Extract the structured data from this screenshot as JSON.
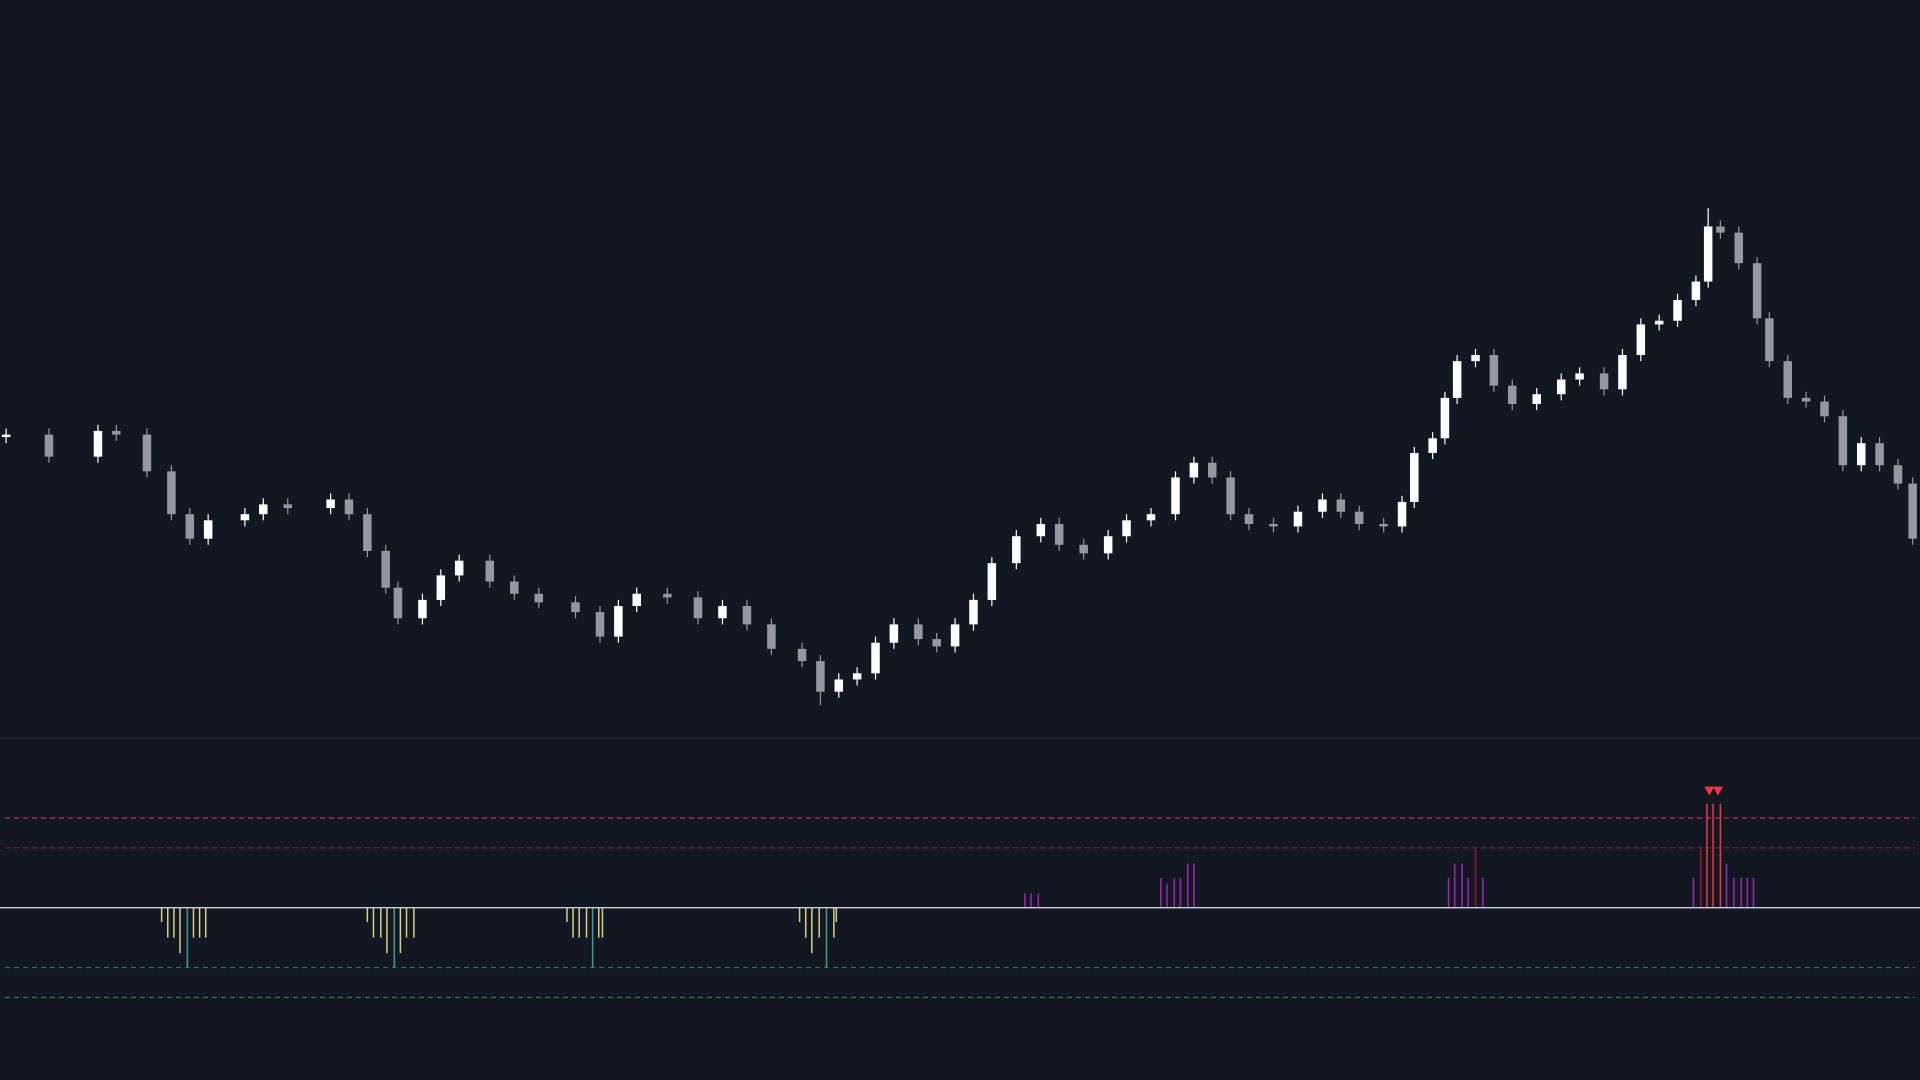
{
  "chart_data": [
    {
      "type": "candlestick",
      "background": "#131722",
      "up_color": "#ffffff",
      "down_color": "#9598a1",
      "xlim": [
        0,
        1568
      ],
      "ylim": [
        0,
        602
      ],
      "x": [
        5,
        40,
        80,
        95,
        120,
        140,
        155,
        170,
        200,
        215,
        235,
        270,
        285,
        300,
        315,
        325,
        345,
        360,
        375,
        400,
        420,
        440,
        470,
        490,
        505,
        520,
        545,
        570,
        590,
        610,
        630,
        655,
        670,
        685,
        700,
        715,
        730,
        750,
        765,
        780,
        795,
        810,
        830,
        850,
        865,
        885,
        905,
        920,
        940,
        960,
        975,
        990,
        1005,
        1020,
        1040,
        1060,
        1080,
        1095,
        1110,
        1130,
        1145,
        1155,
        1170,
        1180,
        1190,
        1205,
        1220,
        1235,
        1255,
        1275,
        1290,
        1310,
        1325,
        1340,
        1355,
        1370,
        1385,
        1395,
        1405,
        1420,
        1435,
        1445,
        1460,
        1475,
        1490,
        1505,
        1520,
        1535,
        1550,
        1562
      ],
      "open": [
        245,
        247,
        229,
        250,
        247,
        217,
        182,
        162,
        177,
        182,
        190,
        187,
        194,
        182,
        152,
        122,
        97,
        112,
        132,
        144,
        127,
        117,
        110,
        102,
        82,
        107,
        117,
        114,
        97,
        107,
        92,
        72,
        62,
        37,
        47,
        52,
        77,
        92,
        80,
        74,
        92,
        112,
        142,
        164,
        174,
        157,
        150,
        164,
        177,
        182,
        212,
        224,
        212,
        182,
        174,
        172,
        184,
        194,
        184,
        174,
        172,
        192,
        232,
        244,
        277,
        307,
        312,
        287,
        272,
        280,
        292,
        297,
        284,
        312,
        337,
        340,
        357,
        372,
        417,
        412,
        387,
        342,
        307,
        277,
        274,
        262,
        222,
        240,
        222,
        207
      ],
      "high": [
        252,
        252,
        255,
        255,
        252,
        222,
        187,
        182,
        187,
        195,
        195,
        199,
        199,
        187,
        157,
        127,
        117,
        137,
        149,
        149,
        132,
        122,
        115,
        107,
        112,
        122,
        122,
        119,
        112,
        112,
        97,
        77,
        67,
        52,
        57,
        82,
        97,
        97,
        85,
        97,
        117,
        147,
        169,
        179,
        179,
        162,
        169,
        182,
        187,
        217,
        229,
        229,
        217,
        187,
        179,
        189,
        199,
        199,
        189,
        179,
        197,
        237,
        249,
        282,
        312,
        317,
        317,
        292,
        285,
        297,
        302,
        302,
        317,
        342,
        345,
        362,
        377,
        432,
        422,
        417,
        392,
        347,
        312,
        282,
        279,
        267,
        245,
        245,
        227,
        212
      ],
      "low": [
        240,
        224,
        224,
        242,
        212,
        177,
        157,
        157,
        172,
        177,
        182,
        182,
        177,
        147,
        117,
        92,
        92,
        107,
        127,
        122,
        112,
        105,
        97,
        77,
        77,
        102,
        109,
        92,
        92,
        87,
        67,
        57,
        26,
        32,
        42,
        47,
        72,
        75,
        69,
        69,
        87,
        107,
        137,
        159,
        152,
        145,
        145,
        159,
        172,
        177,
        207,
        207,
        177,
        169,
        167,
        167,
        179,
        179,
        169,
        167,
        167,
        187,
        227,
        239,
        272,
        302,
        282,
        267,
        267,
        275,
        287,
        279,
        279,
        307,
        332,
        335,
        352,
        367,
        407,
        382,
        337,
        302,
        272,
        269,
        257,
        217,
        217,
        217,
        202,
        157
      ],
      "close": [
        247,
        229,
        250,
        247,
        217,
        182,
        162,
        177,
        182,
        190,
        187,
        194,
        182,
        152,
        122,
        97,
        112,
        132,
        144,
        127,
        117,
        110,
        102,
        82,
        107,
        117,
        114,
        97,
        107,
        92,
        72,
        62,
        37,
        47,
        52,
        77,
        92,
        80,
        74,
        92,
        112,
        142,
        164,
        174,
        157,
        150,
        164,
        177,
        182,
        212,
        224,
        212,
        182,
        174,
        172,
        184,
        194,
        184,
        174,
        172,
        192,
        232,
        244,
        277,
        307,
        312,
        287,
        272,
        280,
        292,
        297,
        284,
        312,
        337,
        340,
        357,
        372,
        417,
        412,
        387,
        342,
        307,
        277,
        274,
        262,
        222,
        240,
        222,
        207,
        162
      ]
    },
    {
      "type": "bar",
      "xlim": [
        0,
        1568
      ],
      "ylim": [
        -144,
        141
      ],
      "baseline": 0,
      "baseline_color": "#d1d4dc",
      "levels": [
        {
          "value": 75,
          "color": "#b23a44"
        },
        {
          "value": 50,
          "color": "#7a2430"
        },
        {
          "value": -50,
          "color": "#2a6f6a"
        },
        {
          "value": -75,
          "color": "#2a8a3a"
        }
      ],
      "x": [
        132,
        137,
        142,
        147,
        153,
        158,
        163,
        168,
        300,
        305,
        311,
        316,
        322,
        327,
        332,
        338,
        463,
        468,
        473,
        479,
        484,
        489,
        492,
        653,
        658,
        663,
        669,
        675,
        681,
        683,
        837,
        842,
        848,
        948,
        953,
        959,
        964,
        970,
        975,
        1183,
        1188,
        1194,
        1199,
        1205,
        1211,
        1383,
        1389,
        1394,
        1399,
        1405,
        1410,
        1416,
        1422,
        1427,
        1432
      ],
      "values": [
        -12,
        -25,
        -25,
        -38,
        -50,
        -25,
        -25,
        -25,
        -12,
        -25,
        -25,
        -38,
        -50,
        -38,
        -25,
        -25,
        -12,
        -25,
        -25,
        -25,
        -50,
        -25,
        -25,
        -12,
        -25,
        -38,
        -25,
        -50,
        -25,
        -12,
        12,
        12,
        12,
        25,
        20,
        25,
        25,
        37,
        37,
        25,
        37,
        37,
        25,
        50,
        25,
        25,
        50,
        87,
        87,
        87,
        37,
        25,
        25,
        25,
        25
      ],
      "colors": [
        "#d6d08a",
        "#d6d08a",
        "#d6d08a",
        "#d6d08a",
        "#3a9e8f",
        "#d6d08a",
        "#d6d08a",
        "#d6d08a",
        "#d6d08a",
        "#d6d08a",
        "#d6d08a",
        "#d6d08a",
        "#3a9e8f",
        "#d6d08a",
        "#d6d08a",
        "#d6d08a",
        "#d6d08a",
        "#d6d08a",
        "#d6d08a",
        "#d6d08a",
        "#3a9e8f",
        "#d6d08a",
        "#d6d08a",
        "#d6d08a",
        "#d6d08a",
        "#d6d08a",
        "#d6d08a",
        "#3a9e8f",
        "#d6d08a",
        "#d6d08a",
        "#9c27b0",
        "#9c27b0",
        "#9c27b0",
        "#9c27b0",
        "#9c27b0",
        "#9c27b0",
        "#9c27b0",
        "#9c27b0",
        "#9c27b0",
        "#9c27b0",
        "#9c27b0",
        "#9c27b0",
        "#9c27b0",
        "#8b1e2a",
        "#9c27b0",
        "#9c27b0",
        "#8b1e2a",
        "#f23645",
        "#f23645",
        "#f23645",
        "#9c27b0",
        "#9c27b0",
        "#9c27b0",
        "#9c27b0",
        "#9c27b0"
      ],
      "signals": {
        "x": [
          1396,
          1403
        ],
        "color": "#f23645"
      }
    }
  ]
}
